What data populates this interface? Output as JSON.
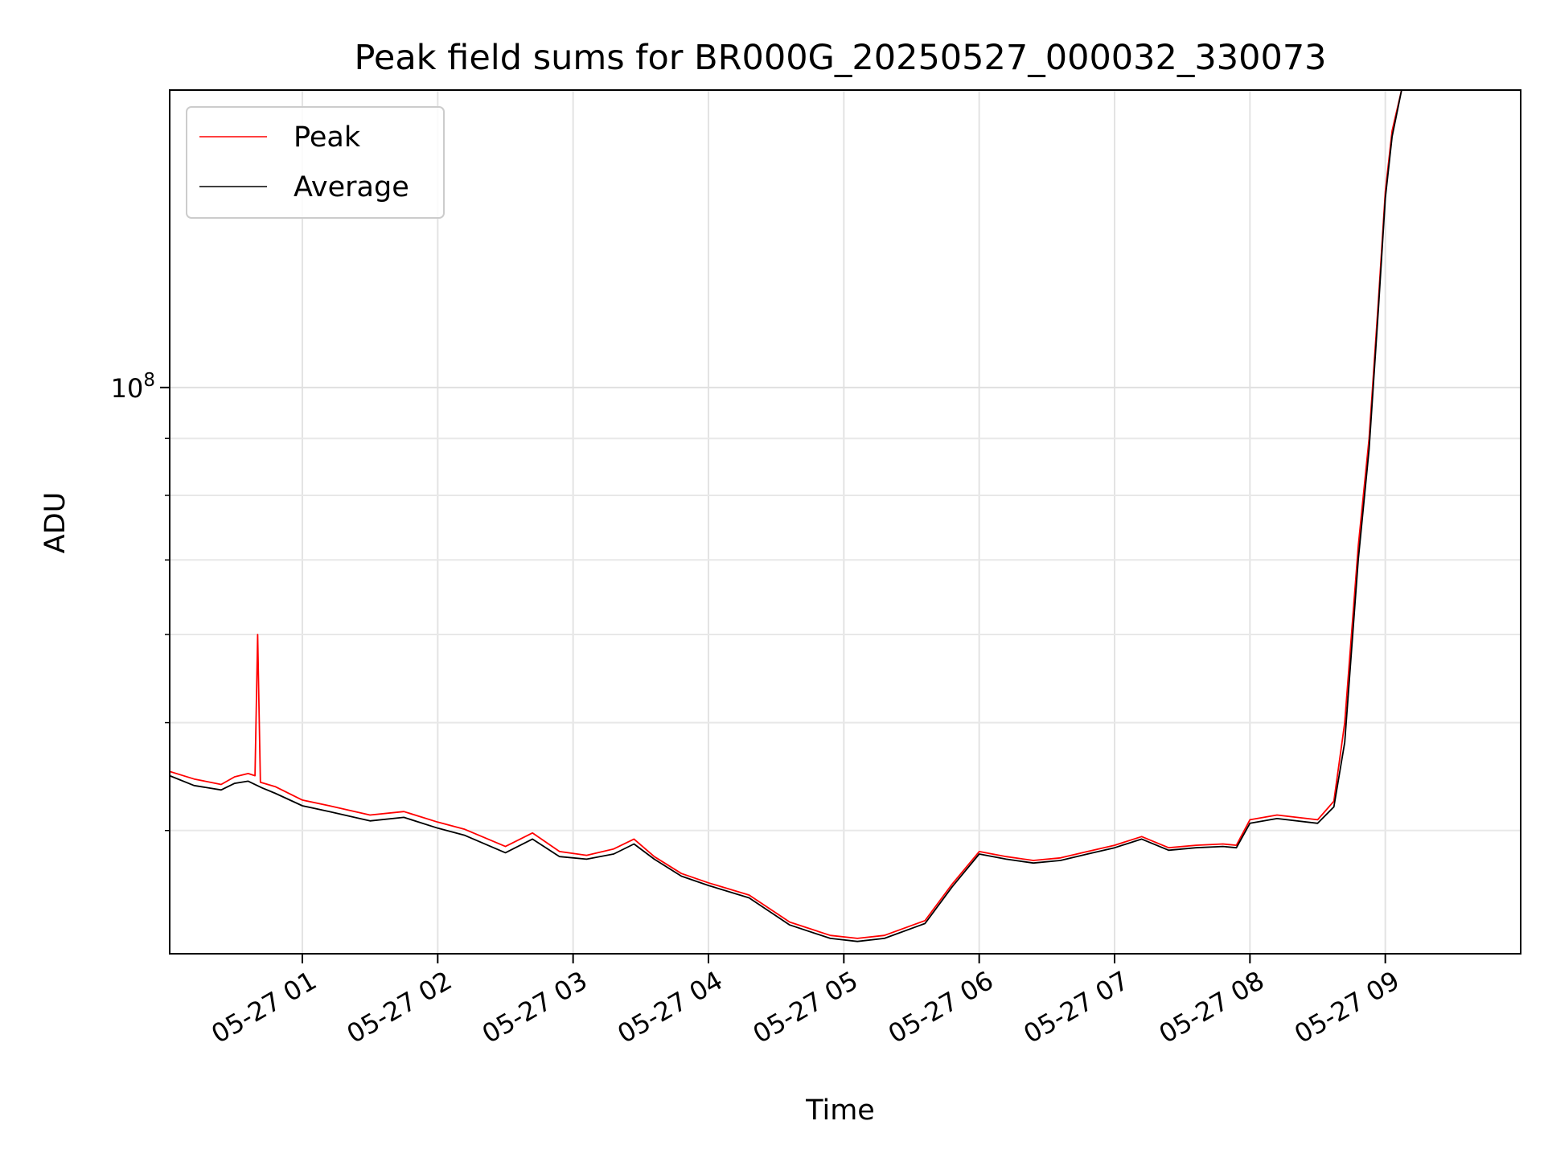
{
  "chart_data": {
    "type": "line",
    "title": "Peak field sums for BR000G_20250527_000032_330073",
    "xlabel": "Time",
    "ylabel": "ADU",
    "x_unit": "hours after 2025-05-27 00:00",
    "xlim": [
      0.02,
      10.0
    ],
    "yscale": "log",
    "ylim": [
      31000000,
      185000000
    ],
    "grid": true,
    "legend_position": "top-left",
    "x_ticks": [
      {
        "value": 1,
        "label": "05-27 01"
      },
      {
        "value": 2,
        "label": "05-27 02"
      },
      {
        "value": 3,
        "label": "05-27 03"
      },
      {
        "value": 4,
        "label": "05-27 04"
      },
      {
        "value": 5,
        "label": "05-27 05"
      },
      {
        "value": 6,
        "label": "05-27 06"
      },
      {
        "value": 7,
        "label": "05-27 07"
      },
      {
        "value": 8,
        "label": "05-27 08"
      },
      {
        "value": 9,
        "label": "05-27 09"
      }
    ],
    "y_ticks": [
      {
        "value": 100000000,
        "base": "10",
        "exp": "8"
      }
    ],
    "series": [
      {
        "name": "Peak",
        "color": "#ff0000",
        "x": [
          0.02,
          0.2,
          0.4,
          0.5,
          0.6,
          0.65,
          0.67,
          0.69,
          0.8,
          1.0,
          1.2,
          1.5,
          1.75,
          2.0,
          2.2,
          2.5,
          2.7,
          2.9,
          3.1,
          3.3,
          3.45,
          3.6,
          3.8,
          4.0,
          4.3,
          4.6,
          4.9,
          5.1,
          5.3,
          5.6,
          5.8,
          6.0,
          6.2,
          6.4,
          6.6,
          6.8,
          7.0,
          7.2,
          7.4,
          7.6,
          7.8,
          7.9,
          8.0,
          8.2,
          8.5,
          8.62,
          8.7,
          8.8,
          8.88,
          8.95,
          9.0,
          9.05,
          9.12
        ],
        "values": [
          45200000,
          44500000,
          44000000,
          44700000,
          45000000,
          44800000,
          60000000,
          44200000,
          43800000,
          42600000,
          42100000,
          41300000,
          41600000,
          40700000,
          40100000,
          38700000,
          39800000,
          38300000,
          38000000,
          38500000,
          39300000,
          37900000,
          36600000,
          35900000,
          35000000,
          33100000,
          32200000,
          32000000,
          32200000,
          33200000,
          35800000,
          38300000,
          37900000,
          37600000,
          37800000,
          38300000,
          38800000,
          39500000,
          38600000,
          38800000,
          38900000,
          38800000,
          40900000,
          41300000,
          40900000,
          42500000,
          50000000,
          72000000,
          90000000,
          120000000,
          150000000,
          170000000,
          185000000
        ]
      },
      {
        "name": "Average",
        "color": "#000000",
        "x": [
          0.02,
          0.2,
          0.4,
          0.5,
          0.6,
          0.7,
          0.8,
          1.0,
          1.2,
          1.5,
          1.75,
          2.0,
          2.2,
          2.5,
          2.7,
          2.9,
          3.1,
          3.3,
          3.45,
          3.6,
          3.8,
          4.0,
          4.3,
          4.6,
          4.9,
          5.1,
          5.3,
          5.6,
          5.8,
          6.0,
          6.2,
          6.4,
          6.6,
          6.8,
          7.0,
          7.2,
          7.4,
          7.6,
          7.8,
          7.9,
          8.0,
          8.2,
          8.5,
          8.62,
          8.7,
          8.8,
          8.88,
          8.95,
          9.0,
          9.05,
          9.12
        ],
        "values": [
          44800000,
          43900000,
          43500000,
          44100000,
          44300000,
          43700000,
          43200000,
          42100000,
          41600000,
          40800000,
          41100000,
          40200000,
          39600000,
          38200000,
          39300000,
          37900000,
          37700000,
          38100000,
          38900000,
          37700000,
          36400000,
          35700000,
          34800000,
          32900000,
          32000000,
          31800000,
          32000000,
          33000000,
          35600000,
          38100000,
          37700000,
          37400000,
          37600000,
          38100000,
          38600000,
          39300000,
          38400000,
          38600000,
          38700000,
          38600000,
          40600000,
          41000000,
          40600000,
          42000000,
          48000000,
          70000000,
          88000000,
          118000000,
          148000000,
          168000000,
          185000000
        ]
      }
    ]
  }
}
